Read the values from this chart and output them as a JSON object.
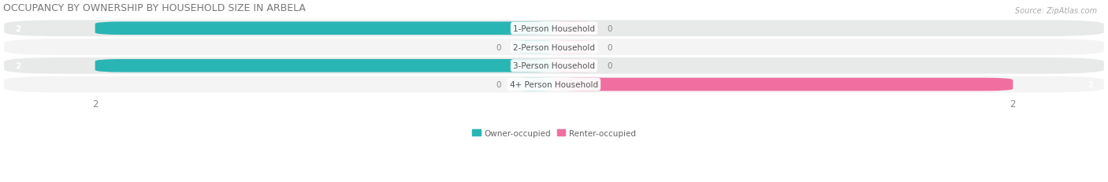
{
  "title": "OCCUPANCY BY OWNERSHIP BY HOUSEHOLD SIZE IN ARBELA",
  "source": "Source: ZipAtlas.com",
  "categories": [
    "1-Person Household",
    "2-Person Household",
    "3-Person Household",
    "4+ Person Household"
  ],
  "owner_values": [
    2,
    0,
    2,
    0
  ],
  "renter_values": [
    0,
    0,
    0,
    2
  ],
  "owner_color": "#2ab5b5",
  "renter_color": "#f06fa0",
  "owner_stub_color": "#7dd4d4",
  "renter_stub_color": "#f9aec8",
  "row_bg_odd": "#e8eaea",
  "row_bg_even": "#f4f4f4",
  "bar_bg_color": "#ffffff",
  "xlim_left": -2.4,
  "xlim_right": 2.4,
  "max_val": 2,
  "title_fontsize": 9,
  "label_fontsize": 8,
  "tick_fontsize": 8.5,
  "cat_fontsize": 7.5,
  "val_fontsize": 7.5
}
